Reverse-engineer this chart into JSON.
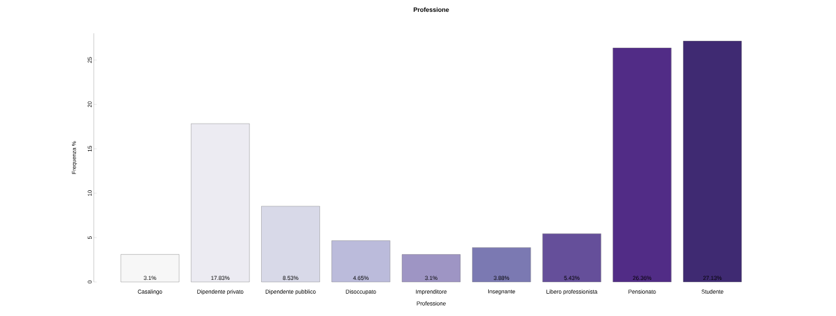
{
  "chart_data": {
    "type": "bar",
    "title": "Professione",
    "xlabel": "Professione",
    "ylabel": "Frequenza %",
    "categories": [
      "Casalingo",
      "Dipendente privato",
      "Dipendente pubblico",
      "Disoccupato",
      "Imprenditore",
      "Insegnante",
      "Libero professionista",
      "Pensionato",
      "Studente"
    ],
    "values": [
      3.1,
      17.83,
      8.53,
      4.65,
      3.1,
      3.88,
      5.43,
      26.36,
      27.13
    ],
    "value_labels": [
      "3.1%",
      "17.83%",
      "8.53%",
      "4.65%",
      "3.1%",
      "3.88%",
      "5.43%",
      "26.36%",
      "27.13%"
    ],
    "colors": [
      "#f7f7f7",
      "#ecebf2",
      "#d8d9e8",
      "#bbbbdb",
      "#9e95c4",
      "#7b79b2",
      "#654f9a",
      "#512c86",
      "#3f2a72"
    ],
    "ylim": [
      0,
      28
    ],
    "yticks": [
      0,
      5,
      10,
      15,
      20,
      25
    ],
    "grid": false
  }
}
